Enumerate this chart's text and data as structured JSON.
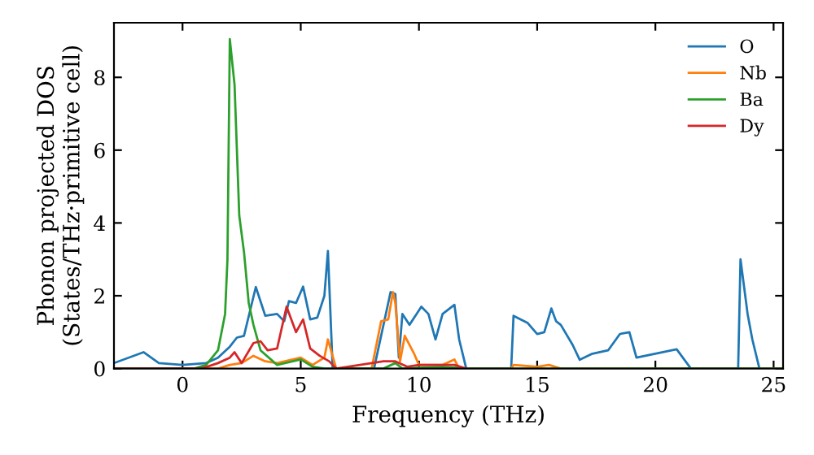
{
  "chart_data": {
    "type": "line",
    "xlabel": "Frequency (THz)",
    "ylabel": "Phonon projected DOS\n(States/THz·primitive cell)",
    "xlim": [
      -2.9,
      25.4
    ],
    "ylim": [
      0,
      9.5
    ],
    "xticks": [
      0,
      5,
      10,
      15,
      20,
      25
    ],
    "yticks": [
      0,
      2,
      4,
      6,
      8
    ],
    "grid": false,
    "legend": "top right",
    "series": [
      {
        "name": "O",
        "color": "#1f77b4",
        "x": [
          -2.9,
          -1.65,
          -1.0,
          0,
          1.0,
          1.5,
          2.0,
          2.3,
          2.6,
          3.1,
          3.5,
          4.0,
          4.3,
          4.5,
          4.8,
          5.1,
          5.4,
          5.7,
          6.0,
          6.15,
          6.35,
          8.1,
          8.8,
          9.0,
          9.15,
          9.3,
          9.6,
          10.1,
          10.4,
          10.7,
          11.0,
          11.5,
          11.7,
          12.0,
          13.9,
          14.0,
          14.6,
          15.0,
          15.3,
          15.6,
          15.8,
          16.0,
          16.5,
          16.8,
          17.3,
          18.0,
          18.5,
          18.9,
          19.2,
          20.9,
          21.5,
          23.5,
          23.6,
          23.9,
          24.1,
          24.4
        ],
        "values": [
          0.15,
          0.45,
          0.15,
          0.1,
          0.15,
          0.3,
          0.6,
          0.85,
          0.9,
          2.24,
          1.45,
          1.5,
          1.3,
          1.85,
          1.8,
          2.25,
          1.35,
          1.4,
          2.0,
          3.23,
          0,
          0,
          2.1,
          2.05,
          0.3,
          1.5,
          1.2,
          1.7,
          1.5,
          0.8,
          1.5,
          1.75,
          0.8,
          0,
          0,
          1.45,
          1.25,
          0.95,
          1.0,
          1.65,
          1.3,
          1.2,
          0.65,
          0.24,
          0.4,
          0.5,
          0.95,
          1.0,
          0.3,
          0.53,
          0,
          0,
          3.0,
          1.5,
          0.8,
          0
        ]
      },
      {
        "name": "Nb",
        "color": "#ff7f0e",
        "x": [
          -2.9,
          1.5,
          2.0,
          2.5,
          3.0,
          3.5,
          4.0,
          5.0,
          5.5,
          6.0,
          6.15,
          6.5,
          8.0,
          8.4,
          8.7,
          8.9,
          9.0,
          9.2,
          9.4,
          9.8,
          10.0,
          11.0,
          11.5,
          11.7,
          13.9,
          14.0,
          15.0,
          15.5,
          16.0,
          25.4
        ],
        "values": [
          0,
          0,
          0.1,
          0.15,
          0.35,
          0.2,
          0.15,
          0.3,
          0.1,
          0.3,
          0.8,
          0,
          0,
          1.3,
          1.35,
          2.1,
          1.8,
          0.2,
          0.9,
          0.4,
          0.1,
          0.1,
          0.25,
          0,
          0,
          0.1,
          0.05,
          0.1,
          0,
          0
        ]
      },
      {
        "name": "Ba",
        "color": "#2ca02c",
        "x": [
          -2.9,
          0.5,
          1.0,
          1.5,
          1.8,
          1.9,
          2.0,
          2.2,
          2.4,
          2.6,
          2.8,
          3.0,
          3.3,
          4.0,
          5.0,
          5.5,
          6.0,
          8.5,
          9.0,
          9.3,
          11.0,
          12.0,
          25.4
        ],
        "values": [
          0,
          0,
          0.1,
          0.5,
          1.5,
          3.0,
          9.05,
          7.8,
          4.2,
          3.2,
          1.8,
          1.2,
          0.5,
          0.1,
          0.25,
          0.05,
          0,
          0,
          0.15,
          0,
          0.05,
          0,
          0
        ]
      },
      {
        "name": "Dy",
        "color": "#d62728",
        "x": [
          -2.9,
          0.8,
          1.5,
          2.0,
          2.2,
          2.5,
          3.0,
          3.3,
          3.6,
          4.0,
          4.4,
          4.8,
          5.1,
          5.4,
          5.8,
          6.2,
          6.5,
          8.5,
          9.0,
          9.5,
          10.0,
          11.5,
          12.0
        ],
        "values": [
          0,
          0,
          0.15,
          0.3,
          0.45,
          0.15,
          0.7,
          0.75,
          0.5,
          0.55,
          1.7,
          1.0,
          1.35,
          0.55,
          0.35,
          0.2,
          0,
          0.2,
          0.2,
          0.05,
          0.1,
          0.1,
          0
        ]
      }
    ]
  }
}
